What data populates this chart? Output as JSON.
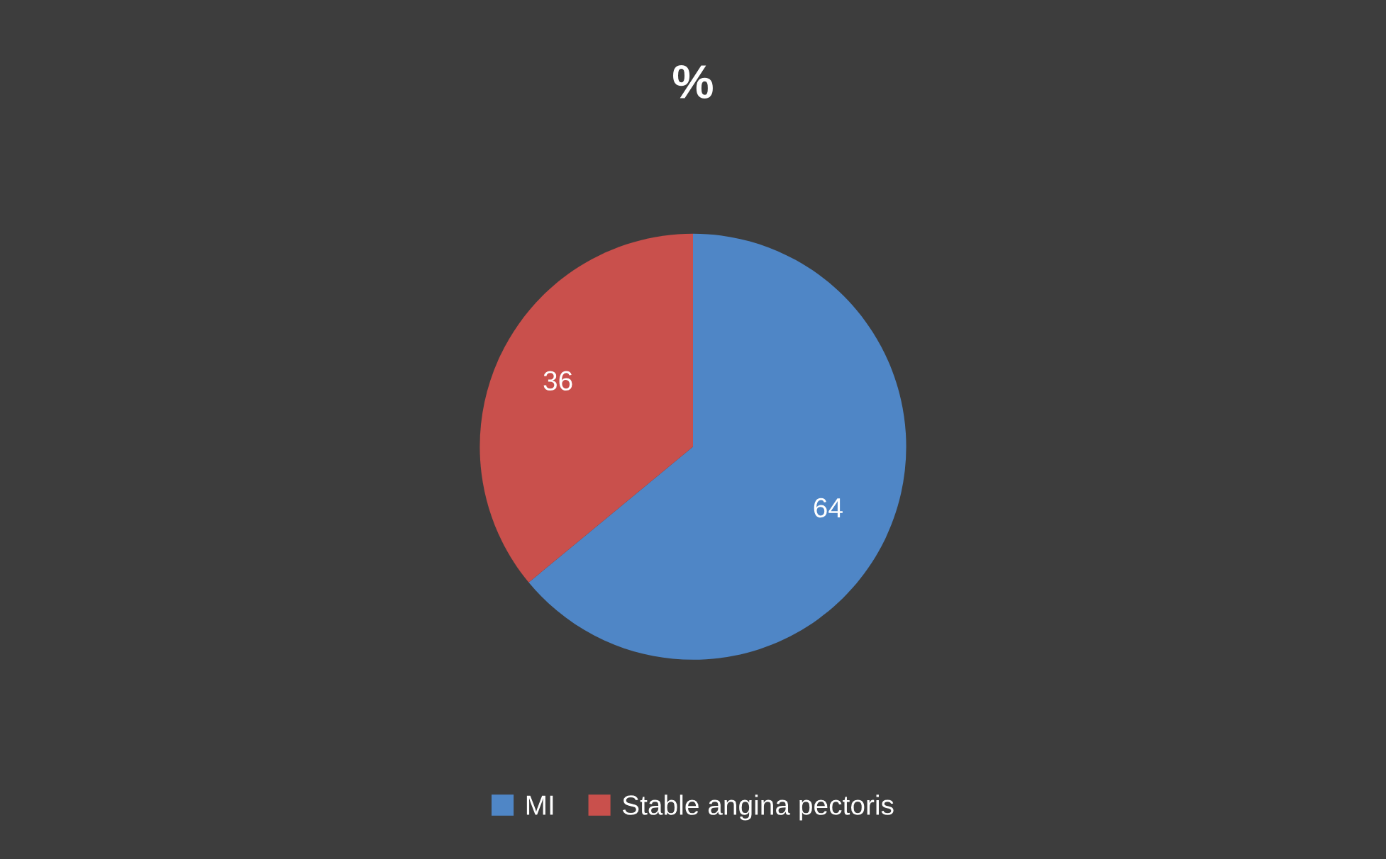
{
  "chart_data": {
    "type": "pie",
    "title": "%",
    "categories": [
      "MI",
      "Stable angina pectoris"
    ],
    "values": [
      64,
      36
    ],
    "colors": [
      "#4f86c6",
      "#c9504c"
    ],
    "data_labels": true,
    "legend": "bottom"
  }
}
